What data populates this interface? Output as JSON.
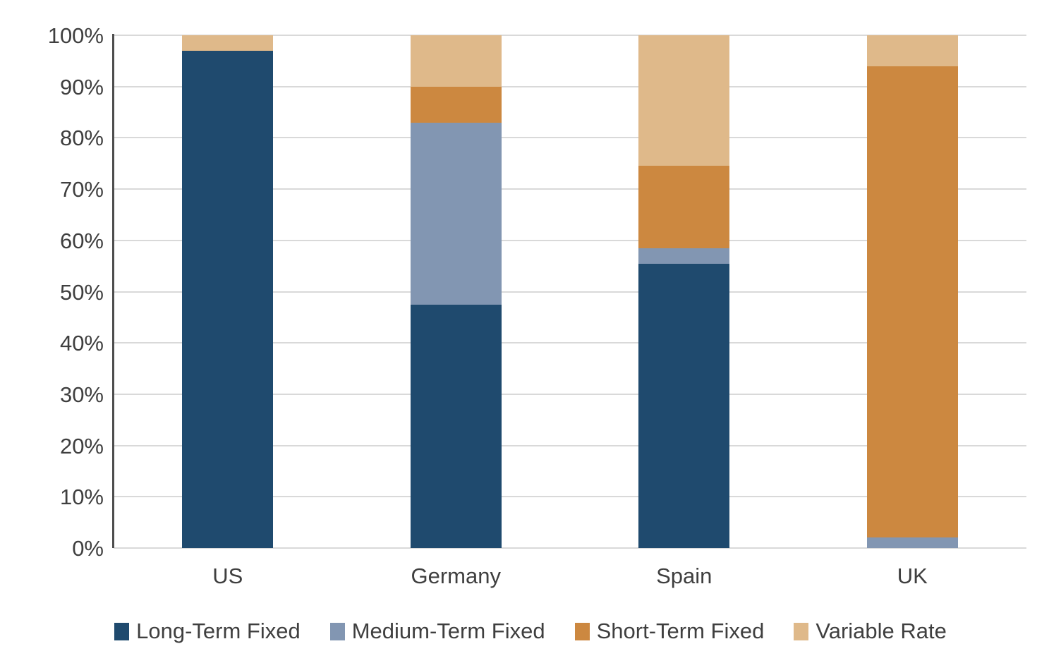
{
  "chart_data": {
    "type": "bar",
    "variant": "stacked-100-percent-column",
    "categories": [
      "US",
      "Germany",
      "Spain",
      "UK"
    ],
    "series": [
      {
        "name": "Long-Term Fixed",
        "color": "#1F4A6E",
        "values": [
          97,
          47.5,
          55.5,
          0
        ]
      },
      {
        "name": "Medium-Term Fixed",
        "color": "#8296B2",
        "values": [
          0,
          35.5,
          3,
          2
        ]
      },
      {
        "name": "Short-Term Fixed",
        "color": "#CC8840",
        "values": [
          0,
          7,
          16,
          92
        ]
      },
      {
        "name": "Variable Rate",
        "color": "#DFB98A",
        "values": [
          3,
          10,
          25.5,
          6
        ]
      }
    ],
    "ylim": [
      0,
      100
    ],
    "y_tick_labels": [
      "100%",
      "90%",
      "80%",
      "70%",
      "60%",
      "50%",
      "40%",
      "30%",
      "20%",
      "10%",
      "0%"
    ],
    "y_tick_step_percent": 10,
    "grid": true,
    "legend_position": "bottom"
  },
  "colors": {
    "gridline": "#D9D9D9",
    "axis_line": "#4D4D4D",
    "tick_text": "#3F3F3F",
    "background": "#FFFFFF"
  }
}
